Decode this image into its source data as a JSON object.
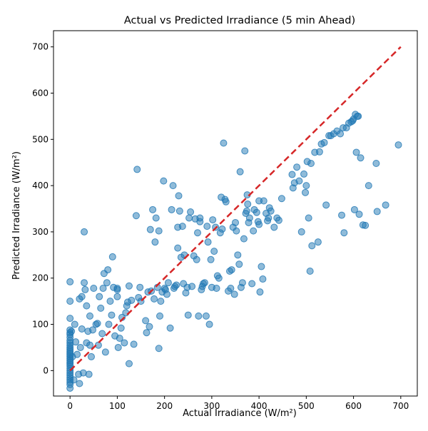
{
  "chart_data": {
    "type": "scatter",
    "title": "Actual vs Predicted Irradiance (5 min Ahead)",
    "xlabel": "Actual Irradiance (W/m²)",
    "ylabel": "Predicted Irradiance (W/m²)",
    "xlim": [
      -35,
      735
    ],
    "ylim": [
      -55,
      735
    ],
    "xticks": [
      0,
      100,
      200,
      300,
      400,
      500,
      600,
      700
    ],
    "yticks": [
      0,
      100,
      200,
      300,
      400,
      500,
      600,
      700
    ],
    "grid": false,
    "point_color": "#1f77b4",
    "point_opacity": 0.5,
    "reference_line": {
      "x": [
        0,
        700
      ],
      "y": [
        0,
        700
      ],
      "color": "#d62728",
      "style": "dashed"
    },
    "points": [
      [
        0,
        192
      ],
      [
        0,
        150
      ],
      [
        0,
        113
      ],
      [
        0,
        88
      ],
      [
        0,
        82
      ],
      [
        0,
        78
      ],
      [
        0,
        72
      ],
      [
        0,
        65
      ],
      [
        0,
        60
      ],
      [
        0,
        55
      ],
      [
        0,
        50
      ],
      [
        0,
        46
      ],
      [
        0,
        42
      ],
      [
        0,
        38
      ],
      [
        0,
        34
      ],
      [
        0,
        30
      ],
      [
        0,
        26
      ],
      [
        0,
        22
      ],
      [
        0,
        18
      ],
      [
        0,
        14
      ],
      [
        0,
        10
      ],
      [
        0,
        5
      ],
      [
        0,
        0
      ],
      [
        0,
        -5
      ],
      [
        0,
        -10
      ],
      [
        0,
        -15
      ],
      [
        0,
        -20
      ],
      [
        0,
        -25
      ],
      [
        0,
        -30
      ],
      [
        0,
        -38
      ],
      [
        3,
        85
      ],
      [
        5,
        30
      ],
      [
        8,
        -20
      ],
      [
        10,
        100
      ],
      [
        12,
        62
      ],
      [
        15,
        35
      ],
      [
        18,
        -8
      ],
      [
        20,
        -28
      ],
      [
        20,
        155
      ],
      [
        22,
        50
      ],
      [
        25,
        160
      ],
      [
        25,
        90
      ],
      [
        28,
        -5
      ],
      [
        30,
        190
      ],
      [
        30,
        300
      ],
      [
        32,
        175
      ],
      [
        35,
        140
      ],
      [
        35,
        60
      ],
      [
        38,
        85
      ],
      [
        40,
        -8
      ],
      [
        42,
        118
      ],
      [
        42,
        55
      ],
      [
        45,
        30
      ],
      [
        48,
        88
      ],
      [
        50,
        178
      ],
      [
        55,
        100
      ],
      [
        58,
        102
      ],
      [
        60,
        55
      ],
      [
        62,
        160
      ],
      [
        65,
        135
      ],
      [
        68,
        80
      ],
      [
        70,
        178
      ],
      [
        72,
        210
      ],
      [
        75,
        40
      ],
      [
        78,
        190
      ],
      [
        80,
        218
      ],
      [
        82,
        100
      ],
      [
        85,
        150
      ],
      [
        88,
        120
      ],
      [
        90,
        246
      ],
      [
        92,
        180
      ],
      [
        95,
        75
      ],
      [
        100,
        160
      ],
      [
        100,
        175
      ],
      [
        100,
        178
      ],
      [
        102,
        50
      ],
      [
        105,
        70
      ],
      [
        108,
        92
      ],
      [
        110,
        115
      ],
      [
        115,
        60
      ],
      [
        118,
        125
      ],
      [
        120,
        140
      ],
      [
        122,
        148
      ],
      [
        125,
        15
      ],
      [
        125,
        183
      ],
      [
        130,
        152
      ],
      [
        135,
        57
      ],
      [
        140,
        335
      ],
      [
        142,
        435
      ],
      [
        145,
        158
      ],
      [
        148,
        180
      ],
      [
        150,
        150
      ],
      [
        160,
        108
      ],
      [
        162,
        82
      ],
      [
        165,
        170
      ],
      [
        168,
        95
      ],
      [
        170,
        305
      ],
      [
        172,
        172
      ],
      [
        175,
        348
      ],
      [
        178,
        155
      ],
      [
        180,
        278
      ],
      [
        182,
        330
      ],
      [
        185,
        180
      ],
      [
        188,
        48
      ],
      [
        188,
        302
      ],
      [
        190,
        118
      ],
      [
        192,
        150
      ],
      [
        195,
        170
      ],
      [
        198,
        410
      ],
      [
        200,
        178
      ],
      [
        202,
        175
      ],
      [
        205,
        165
      ],
      [
        208,
        190
      ],
      [
        212,
        92
      ],
      [
        215,
        348
      ],
      [
        218,
        400
      ],
      [
        220,
        178
      ],
      [
        222,
        182
      ],
      [
        225,
        185
      ],
      [
        228,
        265
      ],
      [
        228,
        310
      ],
      [
        230,
        378
      ],
      [
        232,
        345
      ],
      [
        235,
        245
      ],
      [
        238,
        312
      ],
      [
        240,
        188
      ],
      [
        242,
        250
      ],
      [
        245,
        168
      ],
      [
        248,
        180
      ],
      [
        250,
        120
      ],
      [
        252,
        330
      ],
      [
        255,
        343
      ],
      [
        258,
        182
      ],
      [
        262,
        248
      ],
      [
        265,
        328
      ],
      [
        268,
        240
      ],
      [
        270,
        298
      ],
      [
        272,
        118
      ],
      [
        275,
        322
      ],
      [
        275,
        330
      ],
      [
        278,
        175
      ],
      [
        280,
        182
      ],
      [
        282,
        188
      ],
      [
        285,
        190
      ],
      [
        288,
        118
      ],
      [
        290,
        312
      ],
      [
        292,
        278
      ],
      [
        295,
        100
      ],
      [
        298,
        240
      ],
      [
        300,
        180
      ],
      [
        302,
        326
      ],
      [
        305,
        258
      ],
      [
        308,
        310
      ],
      [
        310,
        178
      ],
      [
        312,
        205
      ],
      [
        315,
        200
      ],
      [
        318,
        298
      ],
      [
        320,
        375
      ],
      [
        322,
        306
      ],
      [
        325,
        492
      ],
      [
        328,
        370
      ],
      [
        330,
        365
      ],
      [
        335,
        172
      ],
      [
        338,
        215
      ],
      [
        340,
        178
      ],
      [
        342,
        218
      ],
      [
        345,
        310
      ],
      [
        348,
        165
      ],
      [
        350,
        320
      ],
      [
        352,
        302
      ],
      [
        355,
        250
      ],
      [
        358,
        230
      ],
      [
        360,
        430
      ],
      [
        362,
        180
      ],
      [
        365,
        190
      ],
      [
        368,
        285
      ],
      [
        370,
        475
      ],
      [
        372,
        340
      ],
      [
        374,
        345
      ],
      [
        375,
        380
      ],
      [
        376,
        360
      ],
      [
        378,
        320
      ],
      [
        380,
        330
      ],
      [
        385,
        188
      ],
      [
        388,
        302
      ],
      [
        390,
        348
      ],
      [
        395,
        342
      ],
      [
        398,
        322
      ],
      [
        400,
        316
      ],
      [
        400,
        367
      ],
      [
        402,
        170
      ],
      [
        405,
        225
      ],
      [
        408,
        198
      ],
      [
        410,
        367
      ],
      [
        415,
        340
      ],
      [
        418,
        324
      ],
      [
        420,
        330
      ],
      [
        422,
        352
      ],
      [
        425,
        345
      ],
      [
        432,
        310
      ],
      [
        438,
        330
      ],
      [
        442,
        325
      ],
      [
        448,
        372
      ],
      [
        470,
        424
      ],
      [
        472,
        395
      ],
      [
        475,
        406
      ],
      [
        480,
        440
      ],
      [
        485,
        410
      ],
      [
        490,
        300
      ],
      [
        495,
        425
      ],
      [
        498,
        385
      ],
      [
        500,
        400
      ],
      [
        502,
        452
      ],
      [
        505,
        330
      ],
      [
        508,
        215
      ],
      [
        510,
        448
      ],
      [
        512,
        270
      ],
      [
        518,
        472
      ],
      [
        525,
        278
      ],
      [
        528,
        473
      ],
      [
        532,
        490
      ],
      [
        538,
        493
      ],
      [
        542,
        358
      ],
      [
        548,
        508
      ],
      [
        552,
        508
      ],
      [
        558,
        512
      ],
      [
        565,
        518
      ],
      [
        572,
        512
      ],
      [
        575,
        336
      ],
      [
        578,
        525
      ],
      [
        580,
        298
      ],
      [
        585,
        525
      ],
      [
        590,
        535
      ],
      [
        595,
        538
      ],
      [
        598,
        540
      ],
      [
        600,
        544
      ],
      [
        602,
        348
      ],
      [
        604,
        554
      ],
      [
        606,
        472
      ],
      [
        608,
        550
      ],
      [
        610,
        550
      ],
      [
        612,
        338
      ],
      [
        615,
        460
      ],
      [
        620,
        315
      ],
      [
        625,
        314
      ],
      [
        632,
        400
      ],
      [
        648,
        448
      ],
      [
        650,
        344
      ],
      [
        668,
        358
      ],
      [
        695,
        488
      ]
    ]
  }
}
